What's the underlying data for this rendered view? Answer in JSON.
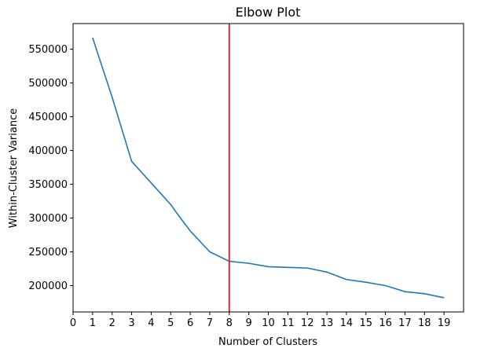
{
  "chart_data": {
    "type": "line",
    "title": "Elbow Plot",
    "xlabel": "Number of Clusters",
    "ylabel": "Within-Cluster Variance",
    "xlim": [
      0,
      20
    ],
    "ylim": [
      161000,
      588000
    ],
    "x_ticks": [
      0,
      1,
      2,
      3,
      4,
      5,
      6,
      7,
      8,
      9,
      10,
      11,
      12,
      13,
      14,
      15,
      16,
      17,
      18,
      19
    ],
    "x_tick_labels": [
      "0",
      "1",
      "2",
      "3",
      "4",
      "5",
      "6",
      "7",
      "8",
      "9",
      "10",
      "11",
      "12",
      "13",
      "14",
      "15",
      "16",
      "17",
      "18",
      "19"
    ],
    "y_ticks": [
      200000,
      250000,
      300000,
      350000,
      400000,
      450000,
      500000,
      550000
    ],
    "y_tick_labels": [
      "200000",
      "250000",
      "300000",
      "350000",
      "400000",
      "450000",
      "500000",
      "550000"
    ],
    "grid": false,
    "series": [
      {
        "color": "#1f77b4",
        "x": [
          1,
          2,
          3,
          4,
          5,
          5.5,
          6,
          7,
          8,
          9,
          10,
          11,
          12,
          13,
          14,
          15,
          16,
          17,
          18,
          19
        ],
        "y": [
          567000,
          479000,
          384000,
          352000,
          320000,
          300000,
          281000,
          250000,
          236000,
          233000,
          228000,
          227000,
          226000,
          220000,
          209000,
          205000,
          200000,
          191000,
          188000,
          182000
        ]
      }
    ],
    "vline": {
      "x": 8,
      "color": "#ff0000"
    }
  }
}
